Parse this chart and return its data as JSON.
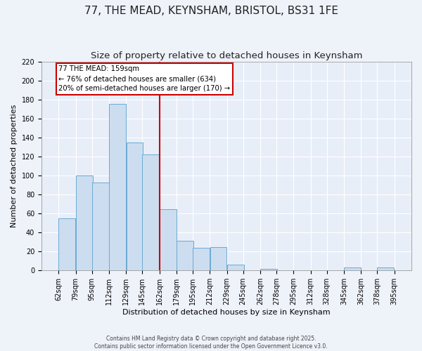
{
  "title": "77, THE MEAD, KEYNSHAM, BRISTOL, BS31 1FE",
  "subtitle": "Size of property relative to detached houses in Keynsham",
  "xlabel": "Distribution of detached houses by size in Keynsham",
  "ylabel": "Number of detached properties",
  "bar_left_edges": [
    62,
    79,
    95,
    112,
    129,
    145,
    162,
    179,
    195,
    212,
    229,
    245,
    262,
    278,
    295,
    312,
    328,
    345,
    362,
    378
  ],
  "bar_heights": [
    55,
    100,
    93,
    176,
    135,
    122,
    65,
    31,
    24,
    25,
    6,
    0,
    2,
    0,
    0,
    0,
    0,
    3,
    0,
    3
  ],
  "bin_width": 17,
  "bar_facecolor": "#ccddf0",
  "bar_edgecolor": "#6aaad4",
  "vline_x": 162,
  "vline_color": "#cc0000",
  "annotation_title": "77 THE MEAD: 159sqm",
  "annotation_line1": "← 76% of detached houses are smaller (634)",
  "annotation_line2": "20% of semi-detached houses are larger (170) →",
  "annotation_box_edgecolor": "#cc0000",
  "annotation_box_facecolor": "#ffffff",
  "ylim": [
    0,
    220
  ],
  "yticks": [
    0,
    20,
    40,
    60,
    80,
    100,
    120,
    140,
    160,
    180,
    200,
    220
  ],
  "xlim": [
    45,
    412
  ],
  "xtick_labels": [
    "62sqm",
    "79sqm",
    "95sqm",
    "112sqm",
    "129sqm",
    "145sqm",
    "162sqm",
    "179sqm",
    "195sqm",
    "212sqm",
    "229sqm",
    "245sqm",
    "262sqm",
    "278sqm",
    "295sqm",
    "312sqm",
    "328sqm",
    "345sqm",
    "362sqm",
    "378sqm",
    "395sqm"
  ],
  "xtick_positions": [
    62,
    79,
    95,
    112,
    129,
    145,
    162,
    179,
    195,
    212,
    229,
    245,
    262,
    278,
    295,
    312,
    328,
    345,
    362,
    378,
    395
  ],
  "background_color": "#eef2f9",
  "plot_bg_color": "#e8eef8",
  "grid_color": "#ffffff",
  "title_fontsize": 11,
  "subtitle_fontsize": 9.5,
  "axis_label_fontsize": 8,
  "tick_fontsize": 7,
  "footer_line1": "Contains HM Land Registry data © Crown copyright and database right 2025.",
  "footer_line2": "Contains public sector information licensed under the Open Government Licence v3.0."
}
